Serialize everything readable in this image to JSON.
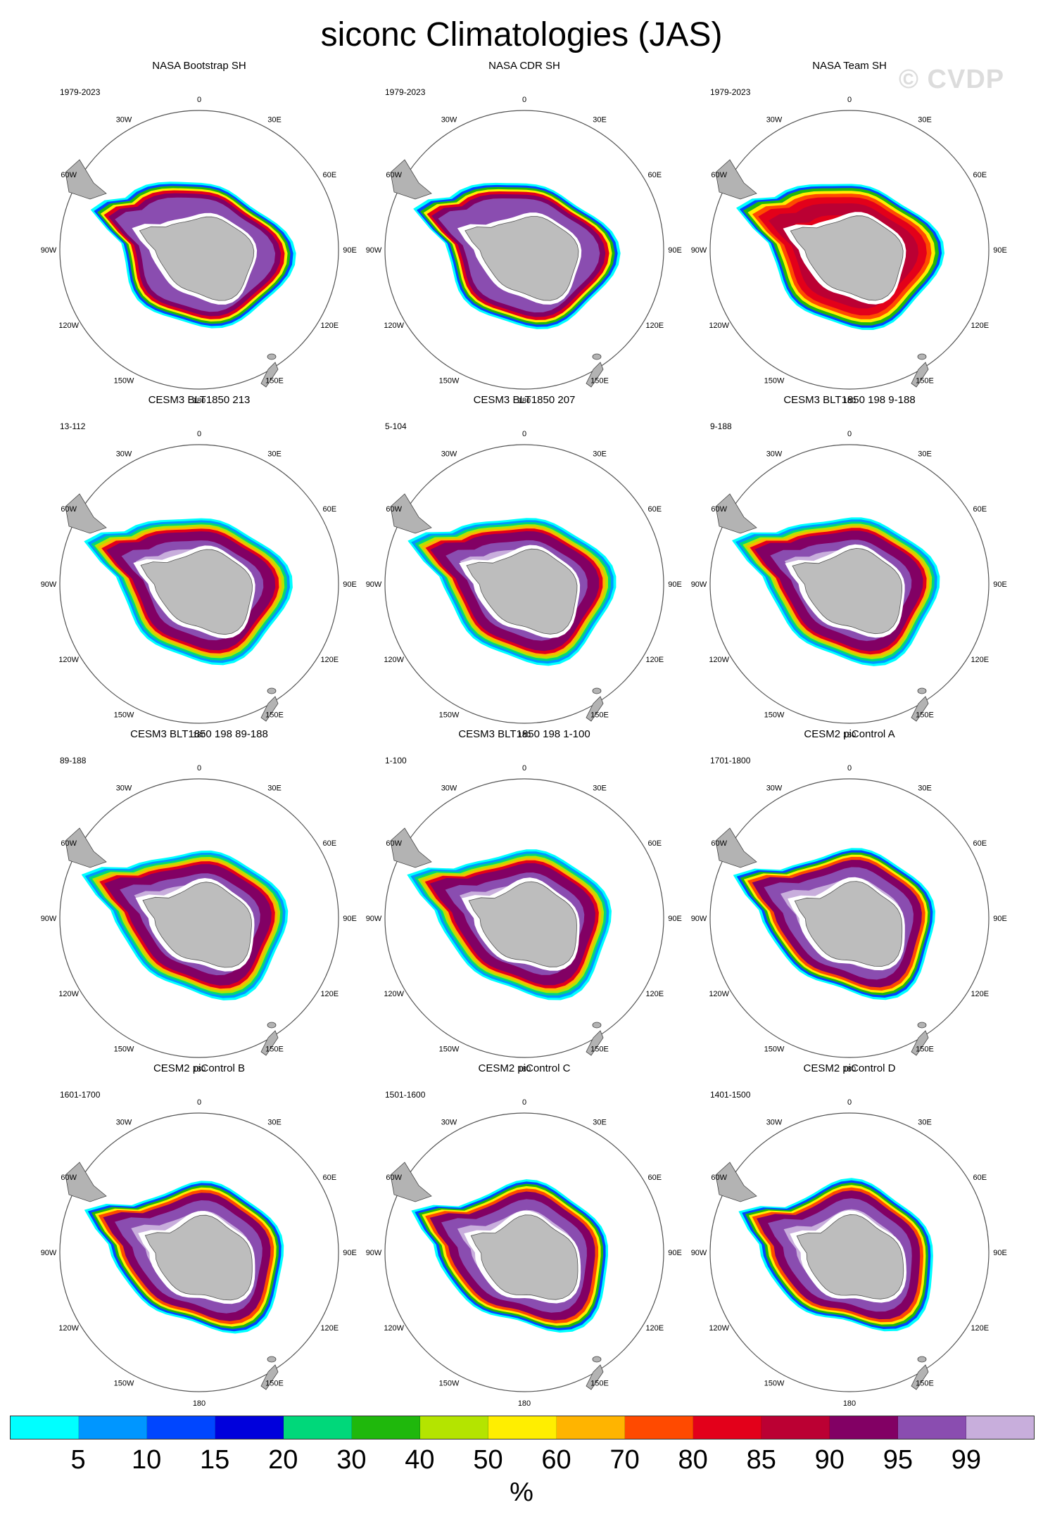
{
  "title": "siconc Climatologies (JAS)",
  "watermark": "© CVDP",
  "lon_labels": [
    "0",
    "30E",
    "60E",
    "90E",
    "120E",
    "150E",
    "180",
    "150W",
    "120W",
    "90W",
    "60W",
    "30W"
  ],
  "panels": [
    {
      "title": "NASA Bootstrap SH",
      "period": "1979-2023",
      "style": "obs"
    },
    {
      "title": "NASA CDR SH",
      "period": "1979-2023",
      "style": "obs"
    },
    {
      "title": "NASA Team SH",
      "period": "1979-2023",
      "style": "team"
    },
    {
      "title": "CESM3 BLT1850 213",
      "period": "13-112",
      "style": "cesm3"
    },
    {
      "title": "CESM3 BLT1850 207",
      "period": "5-104",
      "style": "cesm3"
    },
    {
      "title": "CESM3 BLT1850 198 9-188",
      "period": "9-188",
      "style": "cesm3"
    },
    {
      "title": "CESM3 BLT1850 198 89-188",
      "period": "89-188",
      "style": "cesm3"
    },
    {
      "title": "CESM3 BLT1850 198 1-100",
      "period": "1-100",
      "style": "cesm3"
    },
    {
      "title": "CESM2 piControl A",
      "period": "1701-1800",
      "style": "cesm2"
    },
    {
      "title": "CESM2 piControl B",
      "period": "1601-1700",
      "style": "cesm2"
    },
    {
      "title": "CESM2 piControl C",
      "period": "1501-1600",
      "style": "cesm2"
    },
    {
      "title": "CESM2 piControl D",
      "period": "1401-1500",
      "style": "cesm2"
    }
  ],
  "colorbar": {
    "colors": [
      "#00ffff",
      "#0096ff",
      "#0046ff",
      "#0000dc",
      "#00d87a",
      "#1fb80c",
      "#b4e400",
      "#ffee00",
      "#ffb400",
      "#ff4a00",
      "#e3001a",
      "#bb0033",
      "#820064",
      "#8a4db0",
      "#c8aedc"
    ],
    "labels": [
      "5",
      "10",
      "15",
      "20",
      "30",
      "40",
      "50",
      "60",
      "70",
      "80",
      "85",
      "90",
      "95",
      "99"
    ],
    "units": "%"
  }
}
